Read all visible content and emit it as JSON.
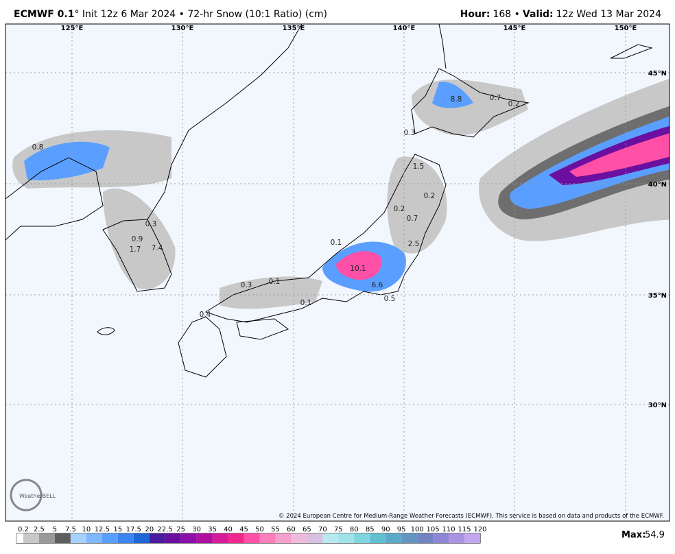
{
  "header": {
    "model": "ECMWF 0.1",
    "title_rest": "° Init 12z 6 Mar 2024 • 72-hr Snow (10:1 Ratio) (cm)",
    "hour_label": "Hour:",
    "hour_value": "168 •",
    "valid_label": "Valid:",
    "valid_value": "12z Wed 13 Mar 2024"
  },
  "map": {
    "lon_labels": [
      "125°E",
      "130°E",
      "135°E",
      "140°E",
      "145°E",
      "150°E"
    ],
    "lat_labels": [
      "45°N",
      "40°N",
      "35°N",
      "30°N"
    ],
    "point_labels": [
      "0.8",
      "8.8",
      "0.7",
      "0.2",
      "0.3",
      "1.5",
      "0.2",
      "0.2",
      "0.7",
      "0.3",
      "0.9",
      "1.7",
      "7.4",
      "0.1",
      "2.5",
      "10.1",
      "6.6",
      "0.3",
      "0.1",
      "0.5",
      "0.1",
      "0.4"
    ],
    "copyright": "© 2024 European Centre for Medium-Range Weather Forecasts (ECMWF). This service is based on data and products of the ECMWF.",
    "logo": "WeatherBELL"
  },
  "legend": {
    "labels": [
      "0.2",
      "2.5",
      "5",
      "7.5",
      "10",
      "12.5",
      "15",
      "17.5",
      "20",
      "22.5",
      "25",
      "30",
      "35",
      "40",
      "45",
      "50",
      "55",
      "60",
      "65",
      "70",
      "75",
      "80",
      "85",
      "90",
      "95",
      "100",
      "105",
      "110",
      "115",
      "120"
    ],
    "colors": [
      "#ffffff",
      "#c8c8c8",
      "#9a9a9a",
      "#5e5e5e",
      "#a6d1ff",
      "#7fb8ff",
      "#5a9fff",
      "#3a85f0",
      "#1f66d6",
      "#4b1b9e",
      "#6a0fa0",
      "#8c10a8",
      "#b0109e",
      "#d61c9a",
      "#f0288e",
      "#ff4fa6",
      "#ff7fbd",
      "#f7a0cc",
      "#efbbdc",
      "#d9bfe0",
      "#b9e8ef",
      "#a0e4ea",
      "#7fd6de",
      "#62bfd0",
      "#5aa9c6",
      "#6295c2",
      "#7382c2",
      "#8f86d6",
      "#a994e3",
      "#c2a6ee"
    ],
    "max_label": "Max:",
    "max_value": "54.9"
  }
}
